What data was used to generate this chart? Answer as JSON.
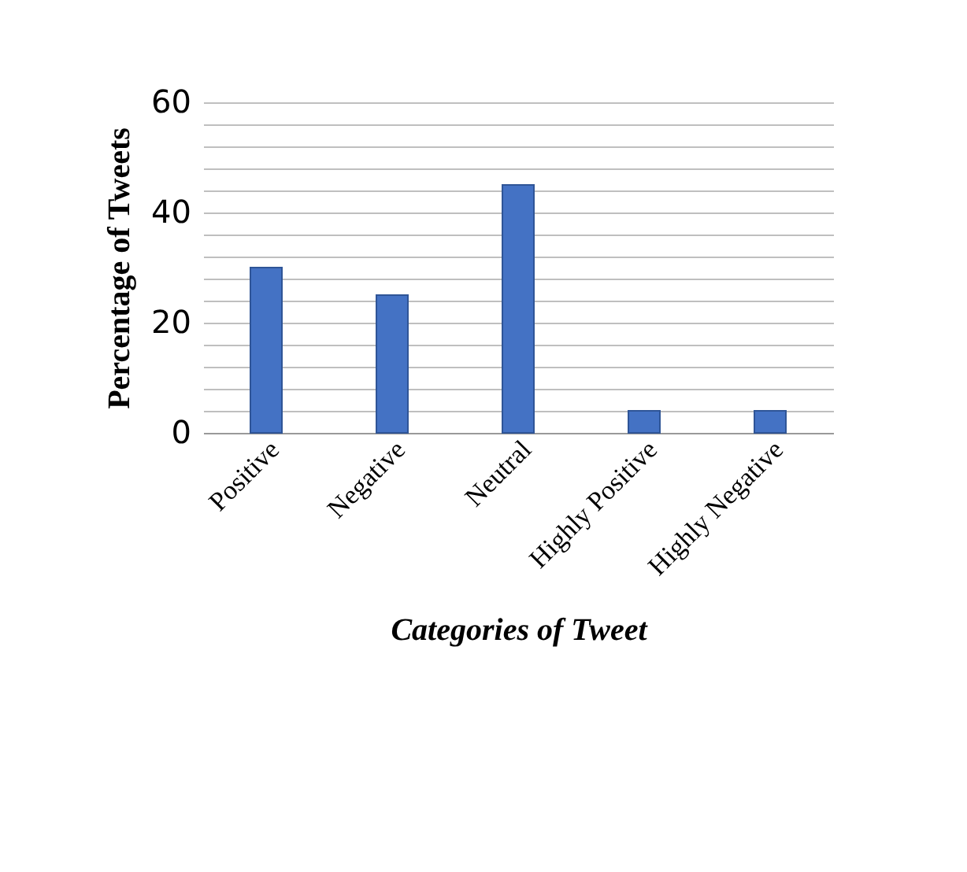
{
  "chart_data": {
    "type": "bar",
    "xlabel": "Categories  of Tweet",
    "ylabel": "Percentage of Tweets",
    "categories": [
      "Positive",
      "Negative",
      "Neutral",
      "Highly Positive",
      "Highly Negative"
    ],
    "values": [
      30,
      25,
      45,
      4,
      4
    ],
    "color": "#4472c4",
    "ylim": [
      0,
      60
    ],
    "yticks": [
      0,
      {
        "value": 4,
        "label": null
      },
      {
        "value": 8,
        "label": null
      },
      {
        "value": 12,
        "label": null
      },
      {
        "value": 16,
        "label": null
      },
      20,
      {
        "value": 24,
        "label": null
      },
      {
        "value": 28,
        "label": null
      },
      {
        "value": 32,
        "label": null
      },
      {
        "value": 36,
        "label": null
      },
      40,
      {
        "value": 44,
        "label": null
      },
      {
        "value": 48,
        "label": null
      },
      {
        "value": 52,
        "label": null
      },
      {
        "value": 56,
        "label": null
      },
      60
    ],
    "grid": true
  }
}
